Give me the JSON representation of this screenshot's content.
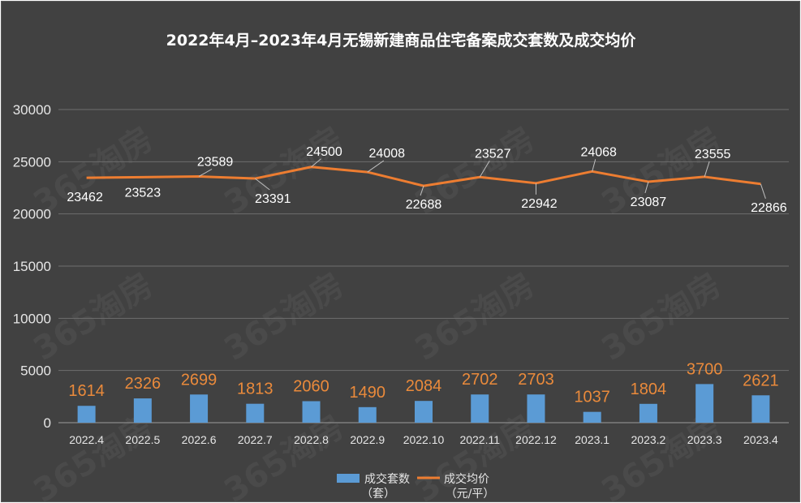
{
  "chart_data": {
    "type": "bar",
    "title": "2022年4月–2023年4月无锡新建商品住宅备案成交套数及成交均价",
    "categories": [
      "2022.4",
      "2022.5",
      "2022.6",
      "2022.7",
      "2022.8",
      "2022.9",
      "2022.10",
      "2022.11",
      "2022.12",
      "2023.1",
      "2023.2",
      "2023.3",
      "2023.4"
    ],
    "series": [
      {
        "name": "成交套数",
        "unit": "（套）",
        "type": "bar",
        "color": "#5b9bd5",
        "values": [
          1614,
          2326,
          2699,
          1813,
          2060,
          1490,
          2084,
          2702,
          2703,
          1037,
          1804,
          3700,
          2621
        ]
      },
      {
        "name": "成交均价",
        "unit": "（元/平）",
        "type": "line",
        "color": "#ed7d31",
        "values": [
          23462,
          23523,
          23589,
          23391,
          24500,
          24008,
          22688,
          23527,
          22942,
          24068,
          23087,
          23555,
          22866
        ]
      }
    ],
    "yticks": [
      "0",
      "5000",
      "10000",
      "15000",
      "20000",
      "25000",
      "30000"
    ],
    "ylim": [
      0,
      30000
    ],
    "grid": true,
    "legend_position": "bottom",
    "background": "#414141",
    "watermark": "365淘房"
  }
}
